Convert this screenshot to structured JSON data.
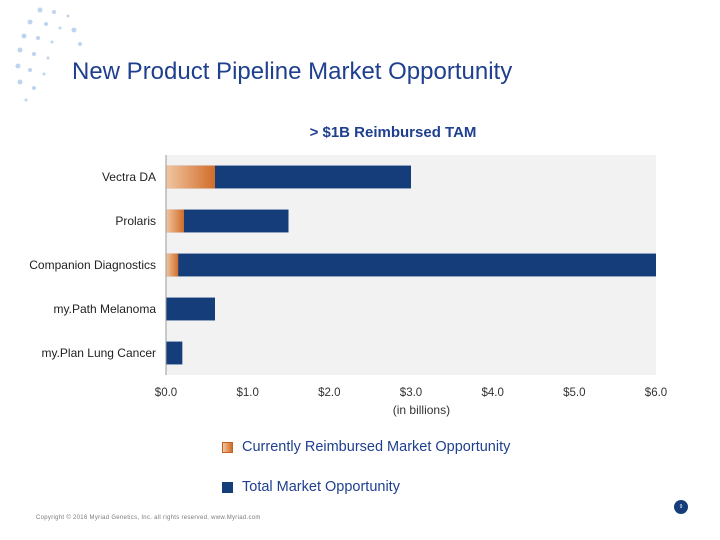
{
  "slide": {
    "title": "New Product Pipeline Market Opportunity",
    "copyright": "Copyright © 2016 Myriad Genetics, Inc. all rights reserved. www.Myriad.com",
    "page_number": "9"
  },
  "colors": {
    "title": "#1f3f8f",
    "total": "#153d7a",
    "current_light": "#f1c6a2",
    "current_dark": "#d06d28",
    "plot_bg": "#f2f2f2",
    "logo_dot": "#a9c6e8"
  },
  "chart_data": {
    "type": "bar",
    "orientation": "horizontal",
    "stacked": false,
    "title": "> $1B Reimbursed TAM",
    "xlabel": "(in billions)",
    "ylabel": "",
    "categories": [
      "Vectra DA",
      "Prolaris",
      "Companion Diagnostics",
      "my.Path Melanoma",
      "my.Plan Lung Cancer"
    ],
    "series": [
      {
        "name": "Total Market Opportunity",
        "values": [
          3.0,
          1.5,
          6.0,
          0.6,
          0.2
        ]
      },
      {
        "name": "Currently Reimbursed Market Opportunity",
        "values": [
          0.6,
          0.22,
          0.15,
          0,
          0
        ]
      }
    ],
    "xlim": [
      0,
      6
    ],
    "x_ticks": [
      "$0.0",
      "$1.0",
      "$2.0",
      "$3.0",
      "$4.0",
      "$5.0",
      "$6.0"
    ],
    "grid": false,
    "legend": [
      "Currently Reimbursed Market Opportunity",
      "Total Market Opportunity"
    ],
    "legend_position": "bottom"
  }
}
